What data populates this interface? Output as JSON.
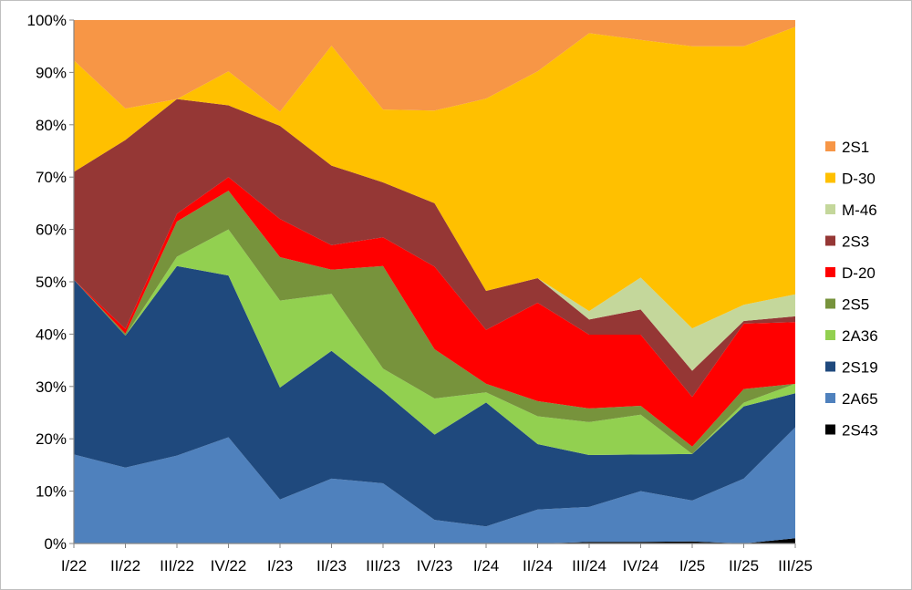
{
  "chart_data": {
    "type": "area",
    "stacked": true,
    "percent": true,
    "categories": [
      "I/22",
      "II/22",
      "III/22",
      "IV/22",
      "I/23",
      "II/23",
      "III/23",
      "IV/23",
      "I/24",
      "II/24",
      "III/24",
      "IV/24",
      "I/25",
      "II/25",
      "III/25"
    ],
    "yticks": [
      "0%",
      "10%",
      "20%",
      "30%",
      "40%",
      "50%",
      "60%",
      "70%",
      "80%",
      "90%",
      "100%"
    ],
    "ylim": [
      0,
      100
    ],
    "grid": false,
    "legend_position": "right",
    "series": [
      {
        "name": "2S43",
        "color": "#000000",
        "values": [
          0,
          0,
          0,
          0,
          0,
          0,
          0,
          0,
          0,
          0,
          0.3,
          0.3,
          0.4,
          0,
          1
        ]
      },
      {
        "name": "2A65",
        "color": "#4f81bd",
        "values": [
          17,
          14.5,
          16.8,
          20.3,
          8.4,
          12.4,
          11.5,
          4.5,
          3.2,
          6.5,
          6.7,
          9.7,
          7.8,
          12.4,
          21.2
        ]
      },
      {
        "name": "2S19",
        "color": "#1f497d",
        "values": [
          33.4,
          25.2,
          36.2,
          30.9,
          21.4,
          24.4,
          17.6,
          16.3,
          23.2,
          12.5,
          9.9,
          7,
          8.9,
          13.8,
          6.5
        ]
      },
      {
        "name": "2A36",
        "color": "#92d050",
        "values": [
          0,
          0,
          1.8,
          8.8,
          16.6,
          10.9,
          4.3,
          6.9,
          1.9,
          5.3,
          6.3,
          7.6,
          0,
          0.7,
          1.8
        ]
      },
      {
        "name": "2S5",
        "color": "#77933c",
        "values": [
          0,
          0.4,
          6.7,
          7.4,
          8.3,
          4.6,
          19.6,
          9.4,
          1.6,
          2.9,
          2.6,
          1.7,
          1.4,
          2.6,
          0
        ]
      },
      {
        "name": "D-20",
        "color": "#ff0000",
        "values": [
          0,
          0.9,
          1.5,
          2.6,
          7.3,
          4.7,
          5.5,
          15.8,
          10.1,
          18.8,
          14.1,
          13.6,
          9.5,
          12.5,
          11.8
        ]
      },
      {
        "name": "2S3",
        "color": "#953735",
        "values": [
          20.6,
          36.1,
          21.9,
          13.7,
          17.8,
          15.2,
          10.5,
          12.1,
          7.3,
          4.7,
          2.9,
          4.8,
          5,
          0.5,
          1.1
        ]
      },
      {
        "name": "M-46",
        "color": "#c4d79b",
        "values": [
          0,
          0,
          0,
          0,
          0,
          0,
          0,
          0,
          0,
          0,
          1.6,
          6.1,
          8.1,
          3.1,
          4.2
        ]
      },
      {
        "name": "D-30",
        "color": "#ffc000",
        "values": [
          21.3,
          6,
          0,
          6.5,
          2.7,
          22.9,
          13.9,
          17.7,
          36,
          39.5,
          53.1,
          45.4,
          53.9,
          49.4,
          51.1
        ]
      },
      {
        "name": "2S1",
        "color": "#f79646",
        "values": [
          7.7,
          16.9,
          15.1,
          9.8,
          17.5,
          4.9,
          17.1,
          17.3,
          14.7,
          9.8,
          2.5,
          3.8,
          5,
          5,
          1.3
        ]
      }
    ]
  }
}
